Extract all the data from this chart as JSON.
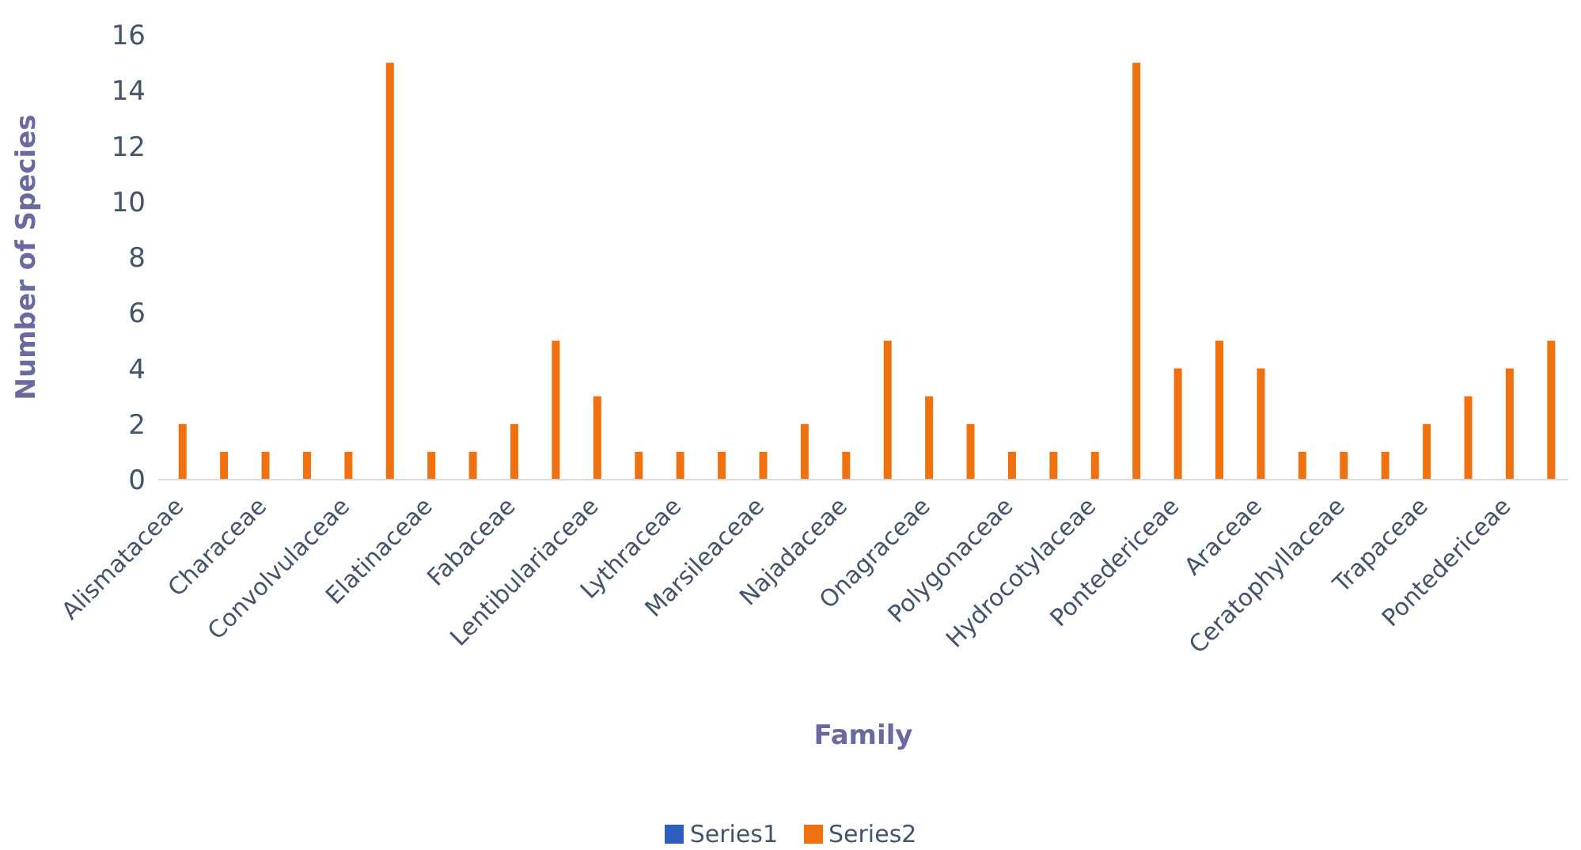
{
  "chart_data": {
    "type": "bar",
    "xlabel": "Family",
    "ylabel": "Number of Species",
    "categories": [
      "Alismataceae",
      null,
      "Characeae",
      null,
      "Convolvulaceae",
      null,
      "Elatinaceae",
      null,
      "Fabaceae",
      null,
      "Lentibulariaceae",
      null,
      "Lythraceae",
      null,
      "Marsileaceae",
      null,
      "Najadaceae",
      null,
      "Onagraceae",
      null,
      "Polygonaceae",
      null,
      "Hydrocotylaceae",
      null,
      "Pontedericeae",
      null,
      "Araceae",
      null,
      "Ceratophyllaceae",
      null,
      "Trapaceae",
      null,
      "Pontedericeae",
      null
    ],
    "series": [
      {
        "name": "Series1",
        "color": "#2e5fc0",
        "values": [
          null,
          null,
          null,
          null,
          null,
          null,
          null,
          null,
          null,
          null,
          null,
          null,
          null,
          null,
          null,
          null,
          null,
          null,
          null,
          null,
          null,
          null,
          null,
          null,
          null,
          null,
          null,
          null,
          null,
          null,
          null,
          null,
          null,
          null
        ]
      },
      {
        "name": "Series2",
        "color": "#f0710f",
        "values": [
          2,
          1,
          1,
          1,
          1,
          15,
          1,
          1,
          2,
          5,
          3,
          1,
          1,
          1,
          1,
          2,
          1,
          5,
          3,
          2,
          1,
          1,
          1,
          15,
          4,
          5,
          4,
          1,
          1,
          1,
          2,
          3,
          4,
          5
        ]
      }
    ],
    "ylim": [
      0,
      16
    ],
    "yticks": [
      0,
      2,
      4,
      6,
      8,
      10,
      12,
      14,
      16
    ],
    "grid": false,
    "legend": "bottom"
  }
}
